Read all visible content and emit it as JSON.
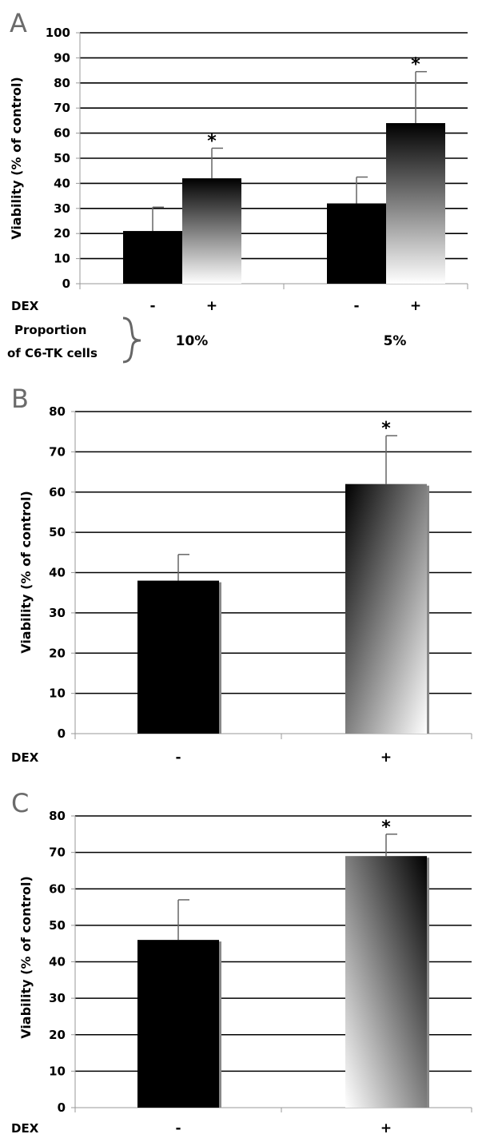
{
  "chart_data": [
    {
      "type": "bar",
      "panel": "A",
      "ylabel": "Viability (% of control)",
      "ylim": [
        0,
        100
      ],
      "yticks": [
        0,
        10,
        20,
        30,
        40,
        50,
        60,
        70,
        80,
        90,
        100
      ],
      "grid": true,
      "row_label": "DEX",
      "groups": [
        {
          "label": "10%",
          "bars": [
            {
              "dex": "-",
              "value": 21,
              "error": 9.5,
              "significant": false,
              "fill": "black"
            },
            {
              "dex": "+",
              "value": 42,
              "error": 12,
              "significant": true,
              "fill": "gradient"
            }
          ]
        },
        {
          "label": "5%",
          "bars": [
            {
              "dex": "-",
              "value": 32,
              "error": 10.5,
              "significant": false,
              "fill": "black"
            },
            {
              "dex": "+",
              "value": 64,
              "error": 20.5,
              "significant": true,
              "fill": "gradient"
            }
          ]
        }
      ],
      "group_axis_label": [
        "Proportion",
        "of C6-TK cells"
      ],
      "significance_marker": "*"
    },
    {
      "type": "bar",
      "panel": "B",
      "ylabel": "Viability (% of control)",
      "ylim": [
        0,
        80
      ],
      "yticks": [
        0,
        10,
        20,
        30,
        40,
        50,
        60,
        70,
        80
      ],
      "grid": true,
      "row_label": "DEX",
      "bars": [
        {
          "dex": "-",
          "value": 38,
          "error": 6.5,
          "significant": false,
          "fill": "black"
        },
        {
          "dex": "+",
          "value": 62,
          "error": 12,
          "significant": true,
          "fill": "gradient"
        }
      ],
      "significance_marker": "*"
    },
    {
      "type": "bar",
      "panel": "C",
      "ylabel": "Viability (% of control)",
      "ylim": [
        0,
        80
      ],
      "yticks": [
        0,
        10,
        20,
        30,
        40,
        50,
        60,
        70,
        80
      ],
      "grid": true,
      "row_label": "DEX",
      "bars": [
        {
          "dex": "-",
          "value": 46,
          "error": 11,
          "significant": false,
          "fill": "black"
        },
        {
          "dex": "+",
          "value": 69,
          "error": 6,
          "significant": true,
          "fill": "gradient"
        }
      ],
      "significance_marker": "*"
    }
  ]
}
